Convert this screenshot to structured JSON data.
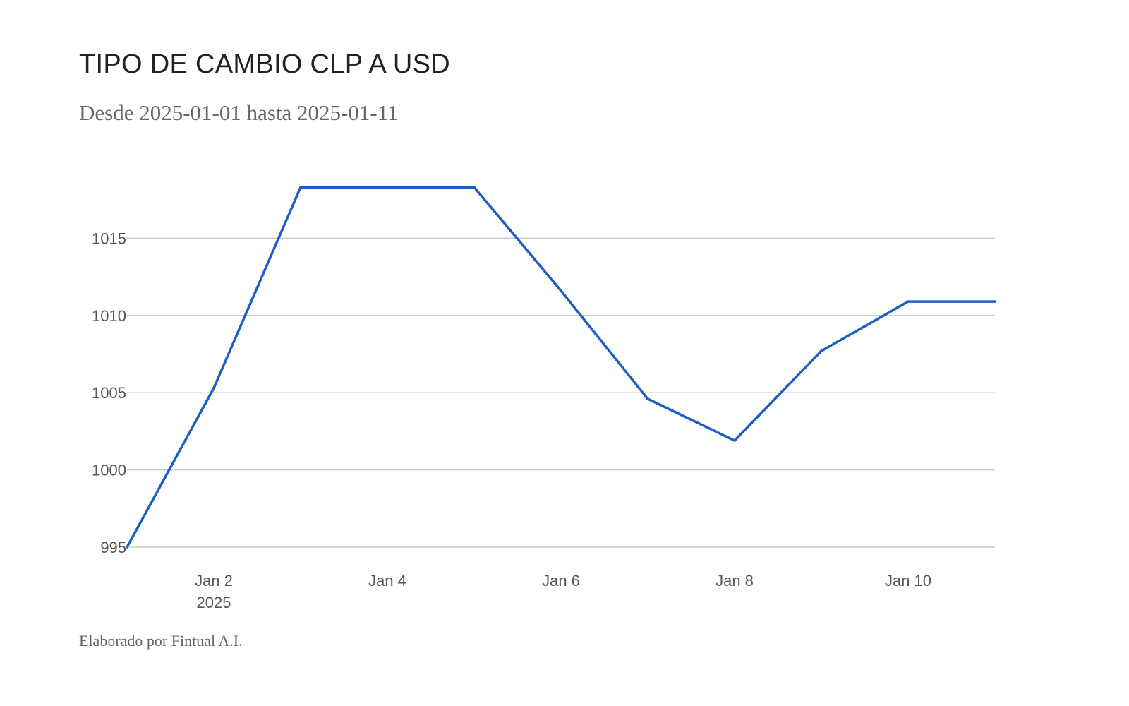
{
  "header": {
    "title": "TIPO DE CAMBIO CLP A USD",
    "subtitle": "Desde 2025-01-01 hasta 2025-01-11"
  },
  "footer": {
    "text": "Elaborado por Fintual A.I."
  },
  "chart_data": {
    "type": "line",
    "title": "TIPO DE CAMBIO CLP A USD",
    "subtitle": "Desde 2025-01-01 hasta 2025-01-11",
    "xlabel": "",
    "ylabel": "",
    "x": [
      "2025-01-01",
      "2025-01-02",
      "2025-01-03",
      "2025-01-04",
      "2025-01-05",
      "2025-01-06",
      "2025-01-07",
      "2025-01-08",
      "2025-01-09",
      "2025-01-10",
      "2025-01-11"
    ],
    "series": [
      {
        "values": [
          995.0,
          1005.3,
          1018.3,
          1018.3,
          1018.3,
          1011.6,
          1004.6,
          1001.9,
          1007.7,
          1010.9,
          1010.9
        ],
        "color": "#1a5fc4"
      }
    ],
    "xlim": [
      "2025-01-01",
      "2025-01-11"
    ],
    "ylim": [
      995,
      1020
    ],
    "yticks": [
      995,
      1000,
      1005,
      1010,
      1015
    ],
    "xticks": [
      {
        "value": "2025-01-02",
        "label": "Jan 2",
        "sublabel": "2025"
      },
      {
        "value": "2025-01-04",
        "label": "Jan 4"
      },
      {
        "value": "2025-01-06",
        "label": "Jan 6"
      },
      {
        "value": "2025-01-08",
        "label": "Jan 8"
      },
      {
        "value": "2025-01-10",
        "label": "Jan 10"
      }
    ],
    "grid": "horizontal",
    "legend": "none"
  }
}
